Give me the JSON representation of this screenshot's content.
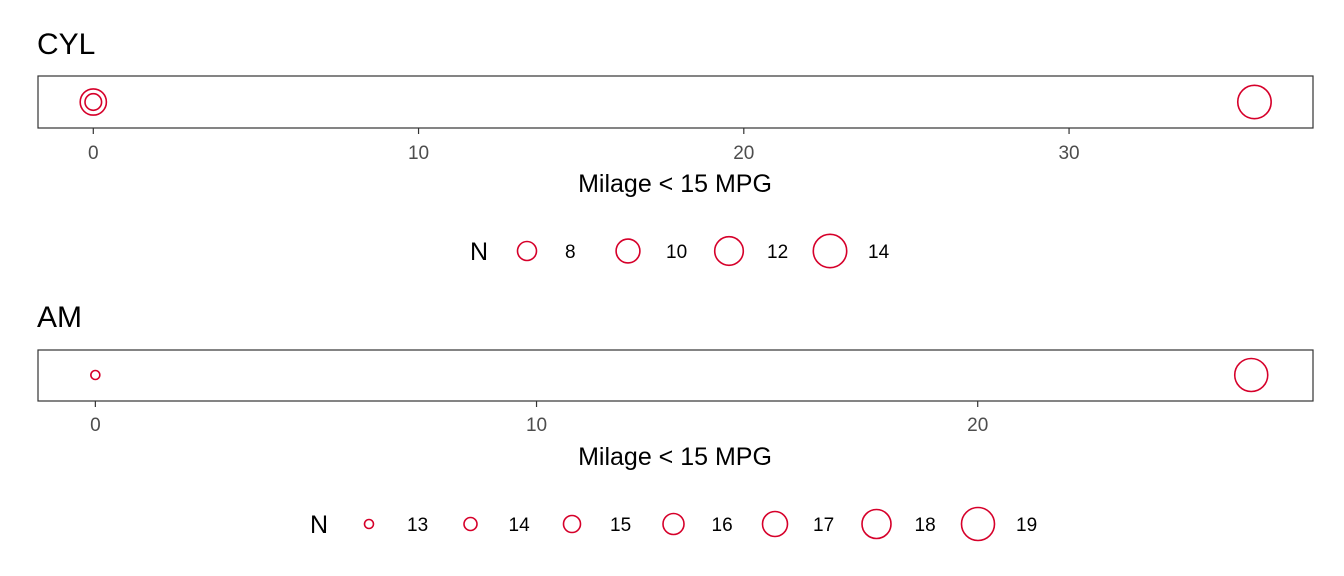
{
  "chart_data": [
    {
      "type": "scatter",
      "title": "CYL",
      "xlabel": "Milage < 15 MPG",
      "ylabel": "",
      "xlim": [
        -1.7,
        37.5
      ],
      "x_ticks": [
        0,
        10,
        20,
        30
      ],
      "grid": false,
      "legend_position": "bottom",
      "legend_title": "N",
      "legend_sizes": [
        8,
        10,
        12,
        14
      ],
      "color": "#d6002a",
      "points": [
        {
          "x": 0,
          "n": 11
        },
        {
          "x": 0,
          "n": 7
        },
        {
          "x": 35.7,
          "n": 14
        }
      ]
    },
    {
      "type": "scatter",
      "title": "AM",
      "xlabel": "Milage < 15 MPG",
      "ylabel": "",
      "xlim": [
        -1.3,
        27.6
      ],
      "x_ticks": [
        0,
        10,
        20
      ],
      "grid": false,
      "legend_position": "bottom",
      "legend_title": "N",
      "legend_sizes": [
        13,
        14,
        15,
        16,
        17,
        18,
        19
      ],
      "color": "#d6002a",
      "points": [
        {
          "x": 0,
          "n": 13
        },
        {
          "x": 26.2,
          "n": 19
        }
      ]
    }
  ]
}
